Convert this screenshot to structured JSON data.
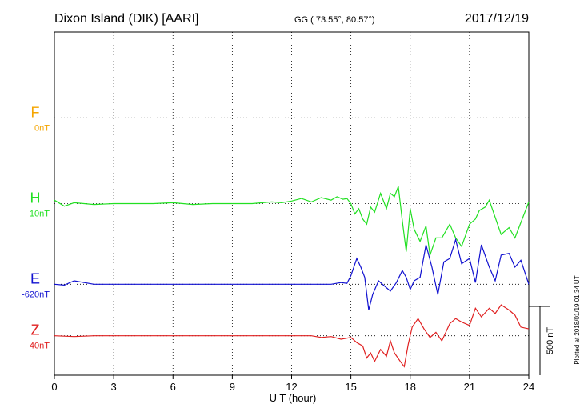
{
  "header": {
    "station": "Dixon Island (DIK)  [AARI]",
    "coords": "GG ( 73.55°,  80.57°)",
    "date": "2017/12/19"
  },
  "side_note": "Plotted at 2018/01/19 01:34 UT",
  "chart_data": {
    "type": "line",
    "xlabel": "U T (hour)",
    "xlim": [
      0,
      24
    ],
    "xticks": [
      0,
      3,
      6,
      9,
      12,
      15,
      18,
      21,
      24
    ],
    "tick_labels": [
      "0",
      "3",
      "6",
      "9",
      "12",
      "15",
      "18",
      "21",
      "24"
    ],
    "ylim_nT": [
      -2000,
      0
    ],
    "y_units": "nT relative to top of panel",
    "grid": "dotted",
    "scale_bar": {
      "label": "500 nT",
      "value_nT": 500
    },
    "series": [
      {
        "name": "F",
        "baseline_label": "0nT",
        "color": "#f5a500",
        "baseline_nT": -500,
        "x": [],
        "values": []
      },
      {
        "name": "H",
        "baseline_label": "10nT",
        "color": "#22e022",
        "baseline_nT": -1000,
        "x": [
          0,
          0.5,
          1,
          2,
          3,
          4,
          5,
          6,
          7,
          8,
          9,
          10,
          11,
          11.5,
          12,
          12.5,
          13,
          13.5,
          14,
          14.3,
          14.6,
          14.8,
          15.0,
          15.2,
          15.4,
          15.6,
          15.8,
          16.0,
          16.2,
          16.5,
          16.8,
          17.0,
          17.2,
          17.4,
          17.6,
          17.8,
          18.0,
          18.2,
          18.5,
          18.8,
          19.0,
          19.3,
          19.6,
          20.0,
          20.3,
          20.6,
          21.0,
          21.3,
          21.5,
          21.8,
          22.0,
          22.3,
          22.6,
          23.0,
          23.3,
          23.6,
          24.0
        ],
        "values": [
          20,
          -15,
          5,
          -5,
          0,
          0,
          0,
          5,
          -5,
          0,
          0,
          0,
          10,
          5,
          15,
          30,
          10,
          35,
          20,
          40,
          25,
          30,
          0,
          -60,
          -30,
          -90,
          -120,
          -20,
          -50,
          60,
          -30,
          60,
          40,
          100,
          -100,
          -280,
          -30,
          -150,
          -220,
          -130,
          -300,
          -200,
          -200,
          -120,
          -200,
          -250,
          -120,
          -90,
          -40,
          -20,
          20,
          -80,
          -180,
          -140,
          -200,
          -110,
          10
        ]
      },
      {
        "name": "E",
        "baseline_label": "-620nT",
        "color": "#1010d0",
        "baseline_nT": -1470,
        "x": [
          0,
          0.5,
          1,
          2,
          3,
          4,
          5,
          6,
          7,
          8,
          9,
          10,
          11,
          12,
          13,
          13.5,
          14,
          14.5,
          14.8,
          15.0,
          15.3,
          15.5,
          15.7,
          15.9,
          16.1,
          16.4,
          16.7,
          17.0,
          17.3,
          17.6,
          17.8,
          18.0,
          18.2,
          18.5,
          18.8,
          19.1,
          19.4,
          19.7,
          20.0,
          20.3,
          20.6,
          21.0,
          21.3,
          21.6,
          22.0,
          22.3,
          22.6,
          23.0,
          23.3,
          23.6,
          24.0
        ],
        "values": [
          0,
          -5,
          20,
          0,
          0,
          0,
          0,
          0,
          0,
          0,
          0,
          0,
          0,
          0,
          0,
          0,
          0,
          10,
          5,
          50,
          150,
          100,
          40,
          -150,
          -60,
          20,
          -10,
          -40,
          10,
          80,
          40,
          -30,
          20,
          40,
          230,
          100,
          -60,
          130,
          150,
          260,
          120,
          150,
          10,
          230,
          100,
          20,
          170,
          180,
          100,
          140,
          0
        ]
      },
      {
        "name": "Z",
        "baseline_label": "40nT",
        "color": "#e02020",
        "baseline_nT": -1770,
        "x": [
          0,
          1,
          2,
          3,
          4,
          5,
          6,
          7,
          8,
          9,
          10,
          11,
          12,
          13,
          13.5,
          14,
          14.5,
          15.0,
          15.3,
          15.6,
          15.8,
          16.0,
          16.2,
          16.5,
          16.8,
          17.0,
          17.2,
          17.5,
          17.7,
          17.9,
          18.1,
          18.4,
          18.7,
          19.0,
          19.3,
          19.6,
          20.0,
          20.3,
          20.6,
          21.0,
          21.3,
          21.6,
          22.0,
          22.3,
          22.6,
          23.0,
          23.3,
          23.6,
          24.0
        ],
        "values": [
          0,
          -5,
          0,
          0,
          0,
          0,
          0,
          0,
          0,
          0,
          0,
          0,
          0,
          0,
          -10,
          -5,
          -20,
          -10,
          -40,
          -60,
          -130,
          -100,
          -150,
          -80,
          -120,
          -30,
          -100,
          -150,
          -180,
          -50,
          50,
          100,
          40,
          -10,
          20,
          -30,
          70,
          100,
          80,
          60,
          160,
          110,
          160,
          130,
          180,
          150,
          120,
          50,
          40
        ]
      }
    ]
  }
}
